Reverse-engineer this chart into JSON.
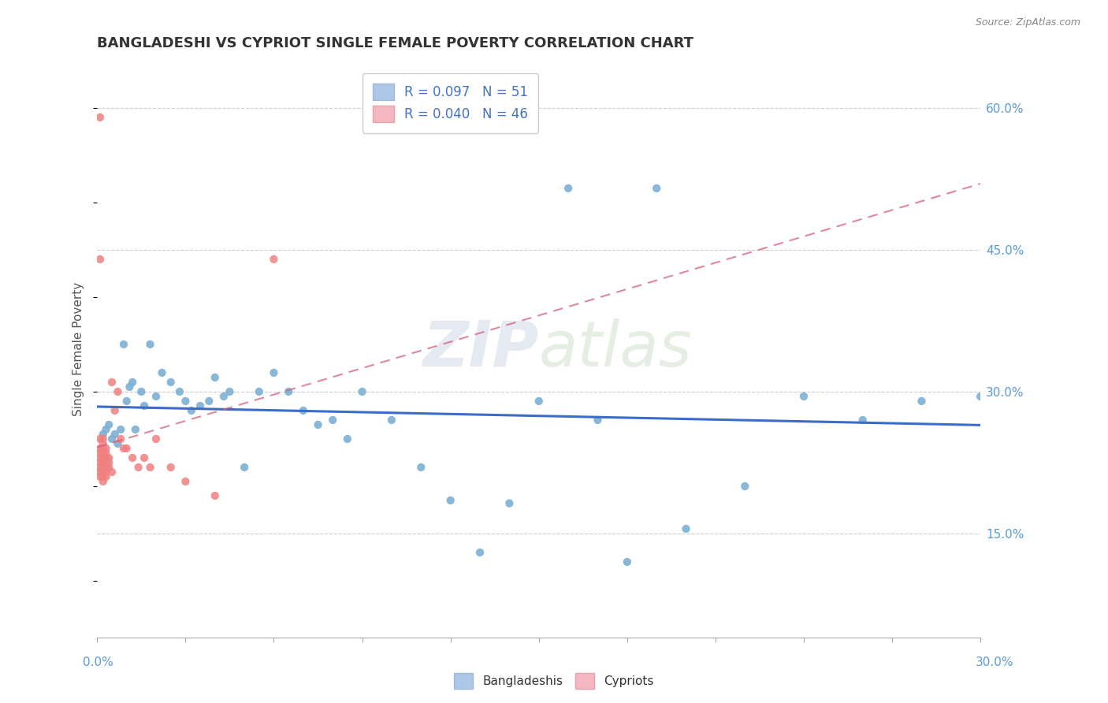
{
  "title": "BANGLADESHI VS CYPRIOT SINGLE FEMALE POVERTY CORRELATION CHART",
  "source": "Source: ZipAtlas.com",
  "ylabel": "Single Female Poverty",
  "right_yticks": [
    0.15,
    0.3,
    0.45,
    0.6
  ],
  "right_yticklabels": [
    "15.0%",
    "30.0%",
    "45.0%",
    "60.0%"
  ],
  "bangladeshi_x": [
    0.002,
    0.003,
    0.004,
    0.005,
    0.006,
    0.007,
    0.008,
    0.009,
    0.01,
    0.011,
    0.012,
    0.013,
    0.015,
    0.016,
    0.018,
    0.02,
    0.022,
    0.025,
    0.028,
    0.03,
    0.032,
    0.035,
    0.038,
    0.04,
    0.043,
    0.045,
    0.05,
    0.055,
    0.06,
    0.065,
    0.07,
    0.075,
    0.08,
    0.085,
    0.09,
    0.1,
    0.11,
    0.12,
    0.13,
    0.14,
    0.15,
    0.16,
    0.17,
    0.18,
    0.19,
    0.2,
    0.22,
    0.24,
    0.26,
    0.28,
    0.3
  ],
  "bangladeshi_y": [
    0.255,
    0.26,
    0.265,
    0.25,
    0.255,
    0.245,
    0.26,
    0.35,
    0.29,
    0.305,
    0.31,
    0.26,
    0.3,
    0.285,
    0.35,
    0.295,
    0.32,
    0.31,
    0.3,
    0.29,
    0.28,
    0.285,
    0.29,
    0.315,
    0.295,
    0.3,
    0.22,
    0.3,
    0.32,
    0.3,
    0.28,
    0.265,
    0.27,
    0.25,
    0.3,
    0.27,
    0.22,
    0.185,
    0.13,
    0.182,
    0.29,
    0.515,
    0.27,
    0.12,
    0.515,
    0.155,
    0.2,
    0.295,
    0.27,
    0.29,
    0.295
  ],
  "cypriot_x": [
    0.001,
    0.001,
    0.001,
    0.001,
    0.001,
    0.001,
    0.001,
    0.001,
    0.001,
    0.001,
    0.002,
    0.002,
    0.002,
    0.002,
    0.002,
    0.002,
    0.002,
    0.002,
    0.002,
    0.002,
    0.003,
    0.003,
    0.003,
    0.003,
    0.003,
    0.003,
    0.003,
    0.004,
    0.004,
    0.004,
    0.005,
    0.005,
    0.006,
    0.007,
    0.008,
    0.009,
    0.01,
    0.012,
    0.014,
    0.016,
    0.018,
    0.02,
    0.025,
    0.03,
    0.04,
    0.06
  ],
  "cypriot_y": [
    0.59,
    0.44,
    0.25,
    0.24,
    0.235,
    0.23,
    0.225,
    0.22,
    0.215,
    0.21,
    0.25,
    0.245,
    0.24,
    0.235,
    0.23,
    0.225,
    0.22,
    0.215,
    0.21,
    0.205,
    0.24,
    0.235,
    0.23,
    0.225,
    0.22,
    0.215,
    0.21,
    0.23,
    0.225,
    0.22,
    0.31,
    0.215,
    0.28,
    0.3,
    0.25,
    0.24,
    0.24,
    0.23,
    0.22,
    0.23,
    0.22,
    0.25,
    0.22,
    0.205,
    0.19,
    0.44
  ],
  "dot_color_blue": "#7bafd4",
  "dot_color_pink": "#f08080",
  "line_color_blue": "#3b6cc7",
  "line_color_pink": "#d4607a",
  "background_color": "#ffffff",
  "title_fontsize": 13,
  "watermark": "ZIPatlas",
  "xlim": [
    0.0,
    0.3
  ],
  "ylim": [
    0.04,
    0.65
  ]
}
